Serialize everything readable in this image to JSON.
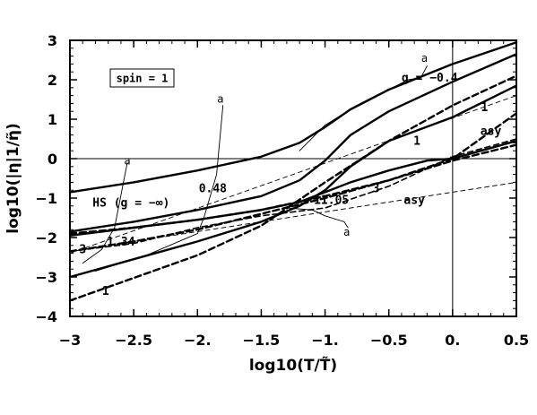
{
  "chart_data": {
    "type": "line",
    "xlabel": "log10(T/T̃)",
    "ylabel": "log10(|η|1/η̃)",
    "xlim": [
      -3,
      0.5
    ],
    "ylim": [
      -4,
      3
    ],
    "x_ticks": [
      {
        "v": -3,
        "label": "−3"
      },
      {
        "v": -2.5,
        "label": "−2.5"
      },
      {
        "v": -2,
        "label": "−2."
      },
      {
        "v": -1.5,
        "label": "−1.5"
      },
      {
        "v": -1,
        "label": "−1."
      },
      {
        "v": -0.5,
        "label": "−0.5"
      },
      {
        "v": 0,
        "label": "0."
      },
      {
        "v": 0.5,
        "label": "0.5"
      }
    ],
    "y_ticks": [
      {
        "v": 3,
        "label": "3"
      },
      {
        "v": 2,
        "label": "2"
      },
      {
        "v": 1,
        "label": "1"
      },
      {
        "v": 0,
        "label": "0"
      },
      {
        "v": -1,
        "label": "−1"
      },
      {
        "v": -2,
        "label": "−2"
      },
      {
        "v": -3,
        "label": "−3"
      },
      {
        "v": -4,
        "label": "−4"
      }
    ],
    "spin_box": "spin = 1",
    "reference_lines": [
      {
        "kind": "horizontal",
        "value": 0
      },
      {
        "kind": "vertical",
        "value": 0
      }
    ],
    "series": [
      {
        "style": "solid-thick",
        "x": [
          -3,
          -2.5,
          -2,
          -1.5,
          -1.2,
          -1.0,
          -0.8,
          -0.5,
          0,
          0.5
        ],
        "y": [
          -0.85,
          -0.6,
          -0.3,
          0.05,
          0.4,
          0.8,
          1.25,
          1.75,
          2.4,
          2.95
        ]
      },
      {
        "style": "solid-thick",
        "x": [
          -3,
          -2.5,
          -2,
          -1.5,
          -1.2,
          -1.0,
          -0.8,
          -0.5,
          0,
          0.5
        ],
        "y": [
          -1.85,
          -1.6,
          -1.3,
          -0.95,
          -0.55,
          -0.05,
          0.6,
          1.2,
          1.95,
          2.65
        ]
      },
      {
        "style": "solid-thick",
        "x": [
          -3,
          -2.5,
          -2,
          -1.5,
          -1.2,
          -1.0,
          -0.8,
          -0.5,
          0,
          0.5
        ],
        "y": [
          -3.0,
          -2.55,
          -2.1,
          -1.6,
          -1.2,
          -0.8,
          -0.2,
          0.45,
          1.05,
          1.85
        ]
      },
      {
        "style": "solid-thick",
        "x": [
          -3,
          -2.5,
          -2,
          -1.5,
          -1.2,
          -1.0,
          -0.8,
          -0.5,
          -0.2,
          0,
          0.5
        ],
        "y": [
          -1.95,
          -1.75,
          -1.55,
          -1.3,
          -1.1,
          -0.85,
          -0.6,
          -0.3,
          -0.05,
          0.0,
          0.45
        ]
      },
      {
        "style": "dashed-thick",
        "x": [
          -3,
          -2.5,
          -2,
          -1.5,
          -1.0,
          -0.5,
          0,
          0.5
        ],
        "y": [
          -1.9,
          -1.75,
          -1.55,
          -1.3,
          -0.95,
          -0.55,
          0.0,
          1.15
        ]
      },
      {
        "style": "dashed-thick",
        "x": [
          -3,
          -2.5,
          -2,
          -1.5,
          -1.0,
          -0.5,
          0,
          0.5
        ],
        "y": [
          -2.35,
          -2.1,
          -1.8,
          -1.4,
          -1.0,
          -0.55,
          -0.05,
          0.35
        ]
      },
      {
        "style": "dashed",
        "x": [
          -3,
          -2.5,
          -2,
          -1.5,
          -1.0,
          -0.5,
          0,
          0.5
        ],
        "y": [
          -2.35,
          -2.15,
          -1.75,
          -1.45,
          -1.25,
          -0.7,
          0.05,
          0.5
        ]
      },
      {
        "style": "dashed-thick",
        "x": [
          -3,
          -2,
          -1.5,
          -1,
          -0.5,
          0,
          0.5
        ],
        "y": [
          -3.6,
          -2.45,
          -1.7,
          -0.6,
          0.45,
          1.35,
          2.1
        ]
      },
      {
        "style": "dashed-thin",
        "x": [
          -3,
          0.5
        ],
        "y": [
          -2.4,
          1.6
        ]
      },
      {
        "style": "dashed-thin",
        "x": [
          -3,
          0.5
        ],
        "y": [
          -2.35,
          -0.6
        ]
      },
      {
        "style": "solid-thin",
        "x": [
          -2.8,
          -2.4,
          -2.0,
          -1.95,
          -1.85,
          -1.8
        ],
        "y": [
          -2.85,
          -2.45,
          -1.9,
          -1.5,
          -0.4,
          1.35
        ]
      },
      {
        "style": "solid-thin",
        "x": [
          -2.9,
          -2.75,
          -2.65,
          -2.55
        ],
        "y": [
          -2.65,
          -2.3,
          -1.75,
          -0.1
        ]
      },
      {
        "style": "solid-thin",
        "x": [
          -1.2,
          -1.0,
          -0.8,
          -0.5,
          -0.35,
          -0.25,
          -0.2
        ],
        "y": [
          0.2,
          0.85,
          1.25,
          1.75,
          2.0,
          2.05,
          2.35
        ]
      },
      {
        "style": "solid-thin",
        "x": [
          -1.3,
          -1.1,
          -1.0,
          -0.85,
          -0.82
        ],
        "y": [
          -1.25,
          -1.3,
          -1.45,
          -1.6,
          -1.75
        ]
      }
    ],
    "annotations": [
      {
        "text": "a",
        "x": -0.22,
        "y": 2.45,
        "cls": "small-a"
      },
      {
        "text": "a",
        "x": -1.82,
        "y": 1.42,
        "cls": "small-a"
      },
      {
        "text": "a",
        "x": -2.55,
        "y": -0.15,
        "cls": "small-a"
      },
      {
        "text": "a",
        "x": -0.83,
        "y": -1.95,
        "cls": "small-a"
      },
      {
        "text": "g = −0.4",
        "x": -0.18,
        "y": 1.95,
        "cls": "annot"
      },
      {
        "text": "1",
        "x": 0.25,
        "y": 1.2,
        "cls": "annot"
      },
      {
        "text": "asy",
        "x": 0.3,
        "y": 0.6,
        "cls": "annot"
      },
      {
        "text": "1",
        "x": -0.28,
        "y": 0.35,
        "cls": "annot"
      },
      {
        "text": "0.48",
        "x": -1.88,
        "y": -0.85,
        "cls": "annot"
      },
      {
        "text": "HS (g = −∞)",
        "x": -2.52,
        "y": -1.22,
        "cls": "annot"
      },
      {
        "text": "11.05",
        "x": -0.95,
        "y": -1.15,
        "cls": "annot"
      },
      {
        "text": "3",
        "x": -0.6,
        "y": -0.85,
        "cls": "annot"
      },
      {
        "text": "asy",
        "x": -0.3,
        "y": -1.15,
        "cls": "annot"
      },
      {
        "text": "3",
        "x": -2.9,
        "y": -2.4,
        "cls": "annot"
      },
      {
        "text": "1.34",
        "x": -2.6,
        "y": -2.2,
        "cls": "annot"
      },
      {
        "text": "1",
        "x": -2.72,
        "y": -3.45,
        "cls": "annot"
      }
    ]
  }
}
